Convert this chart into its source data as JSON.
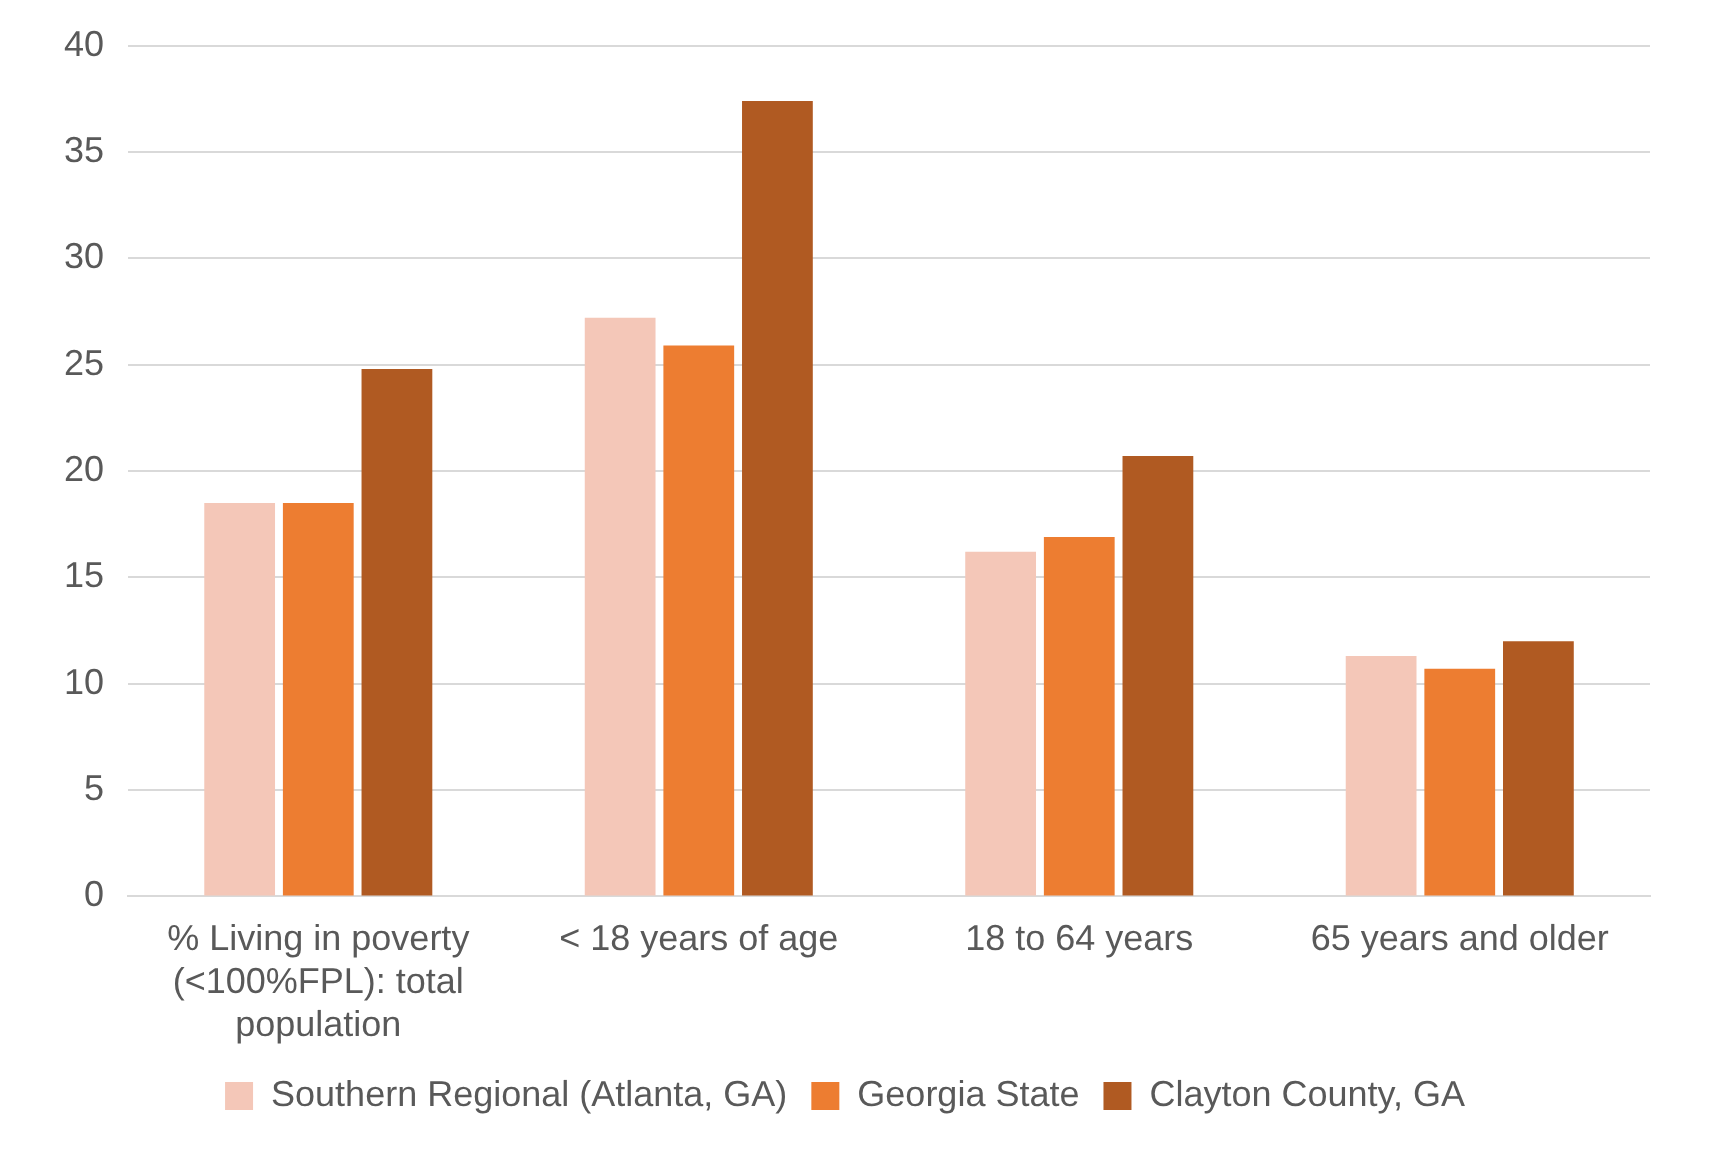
{
  "chart_data": {
    "type": "bar",
    "categories": [
      "% Living in poverty (<100%FPL): total population",
      "< 18 years of age",
      "18 to 64 years",
      "65 years and older"
    ],
    "series": [
      {
        "name": "Southern Regional (Atlanta, GA)",
        "color": "#f4c7b8",
        "values": [
          18.5,
          27.2,
          16.2,
          11.3
        ]
      },
      {
        "name": "Georgia State",
        "color": "#ed7d31",
        "values": [
          18.5,
          25.9,
          16.9,
          10.7
        ]
      },
      {
        "name": "Clayton County, GA",
        "color": "#b05a22",
        "values": [
          24.8,
          37.4,
          20.7,
          12.0
        ]
      }
    ],
    "ylim": [
      0,
      40
    ],
    "yticks": [
      0,
      5,
      10,
      15,
      20,
      25,
      30,
      35,
      40
    ],
    "grid": "y",
    "legend": "bottom"
  }
}
